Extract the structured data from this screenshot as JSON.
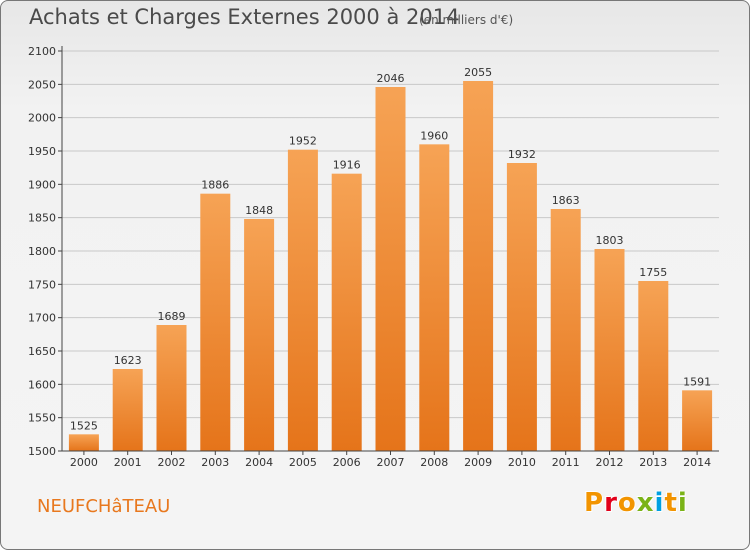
{
  "title": "Achats et Charges Externes 2000 à 2014",
  "subtitle": "(en milliers d'€)",
  "location": "NEUFCHâTEAU",
  "logo": {
    "letters": [
      "P",
      "r",
      "o",
      "x",
      "i",
      "t",
      "i"
    ],
    "colors": [
      "#f29400",
      "#e2001a",
      "#f29400",
      "#7ab317",
      "#00a0e2",
      "#f29400",
      "#7ab317"
    ]
  },
  "colors": {
    "bar_light": "#f6a355",
    "bar_dark": "#e5741a",
    "grid": "#c8c8c8",
    "axis": "#444444"
  },
  "chart_data": {
    "type": "bar",
    "title": "Achats et Charges Externes 2000 à 2014",
    "subtitle": "(en milliers d'€)",
    "xlabel": "",
    "ylabel": "",
    "categories": [
      "2000",
      "2001",
      "2002",
      "2003",
      "2004",
      "2005",
      "2006",
      "2007",
      "2008",
      "2009",
      "2010",
      "2011",
      "2012",
      "2013",
      "2014"
    ],
    "values": [
      1525,
      1623,
      1689,
      1886,
      1848,
      1952,
      1916,
      2046,
      1960,
      2055,
      1932,
      1863,
      1803,
      1755,
      1591
    ],
    "ylim": [
      1500,
      2100
    ],
    "yticks": [
      1500,
      1550,
      1600,
      1650,
      1700,
      1750,
      1800,
      1850,
      1900,
      1950,
      2000,
      2050,
      2100
    ],
    "grid": true
  }
}
